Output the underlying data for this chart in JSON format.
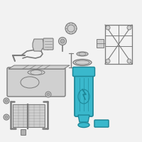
{
  "bg_color": "#f2f2f2",
  "highlight_color": "#3ab8cc",
  "highlight_stroke": "#1e8899",
  "part_color": "#b0b0b0",
  "part_stroke": "#7a7a7a",
  "part_light": "#d0d0d0",
  "part_dark": "#555555",
  "figsize": [
    2.0,
    2.0
  ],
  "dpi": 100
}
